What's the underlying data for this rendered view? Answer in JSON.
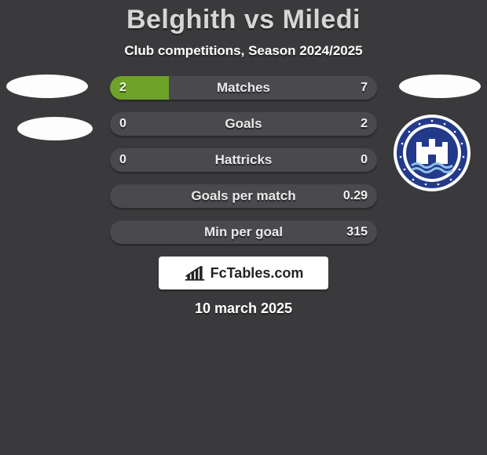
{
  "title": "Belghith vs Miledi",
  "subtitle": "Club competitions, Season 2024/2025",
  "date": "10 march 2025",
  "brand": {
    "text": "FcTables.com"
  },
  "colors": {
    "background": "#3a3a3c",
    "row_bg": "#4a4a4e",
    "left_fill": "#6fa229",
    "text": "#e9e9e9"
  },
  "badge": {
    "outer": "#ffffff",
    "main": "#233a8a",
    "accent": "#8fbfe8"
  },
  "rows": [
    {
      "label": "Matches",
      "left": "2",
      "right": "7",
      "left_pct": 22.2,
      "right_pct": 0
    },
    {
      "label": "Goals",
      "left": "0",
      "right": "2",
      "left_pct": 0,
      "right_pct": 0
    },
    {
      "label": "Hattricks",
      "left": "0",
      "right": "0",
      "left_pct": 0,
      "right_pct": 0
    },
    {
      "label": "Goals per match",
      "left": "",
      "right": "0.29",
      "left_pct": 0,
      "right_pct": 0
    },
    {
      "label": "Min per goal",
      "left": "",
      "right": "315",
      "left_pct": 0,
      "right_pct": 0
    }
  ]
}
